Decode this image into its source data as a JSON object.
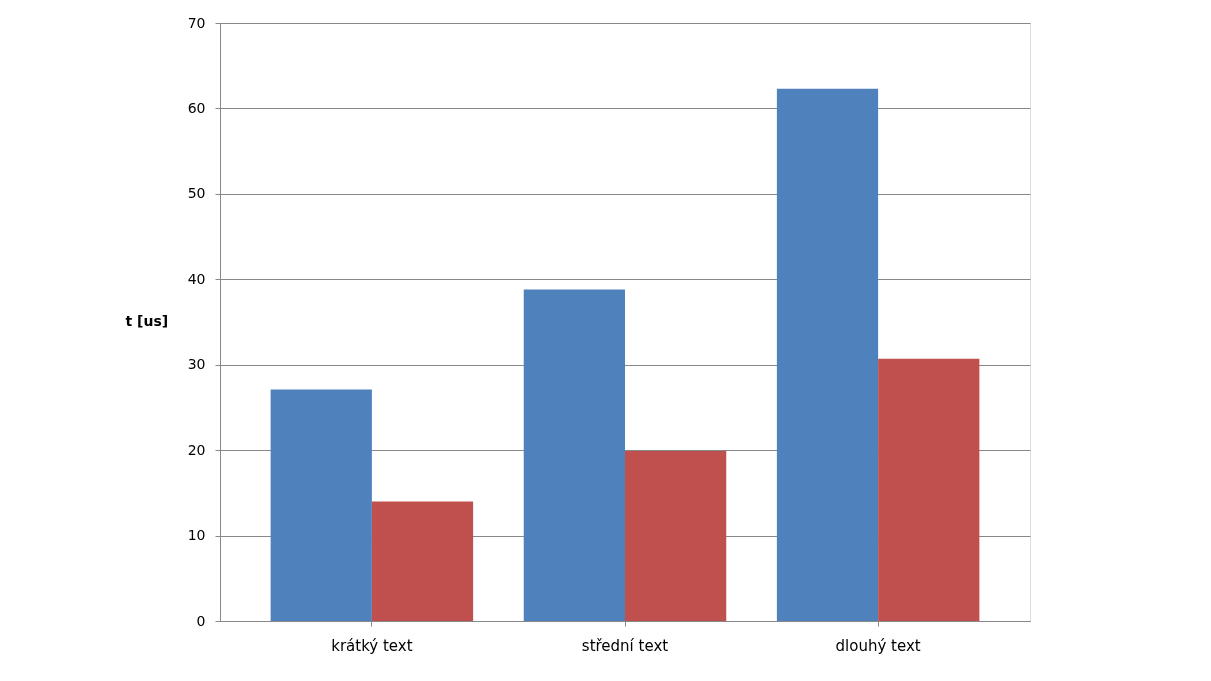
{
  "chart_data": {
    "type": "bar",
    "ylabel": "t [us]",
    "categories": [
      "krátký text",
      "střední text",
      "dlouhý text"
    ],
    "series": [
      {
        "color": "#4f81bd",
        "values": [
          27.1,
          38.8,
          62.3
        ]
      },
      {
        "color": "#c0504d",
        "values": [
          14.0,
          19.9,
          30.7
        ]
      }
    ],
    "ylim": [
      0,
      70
    ],
    "yticks": [
      0,
      10,
      20,
      30,
      40,
      50,
      60,
      70
    ],
    "grid": "y"
  }
}
